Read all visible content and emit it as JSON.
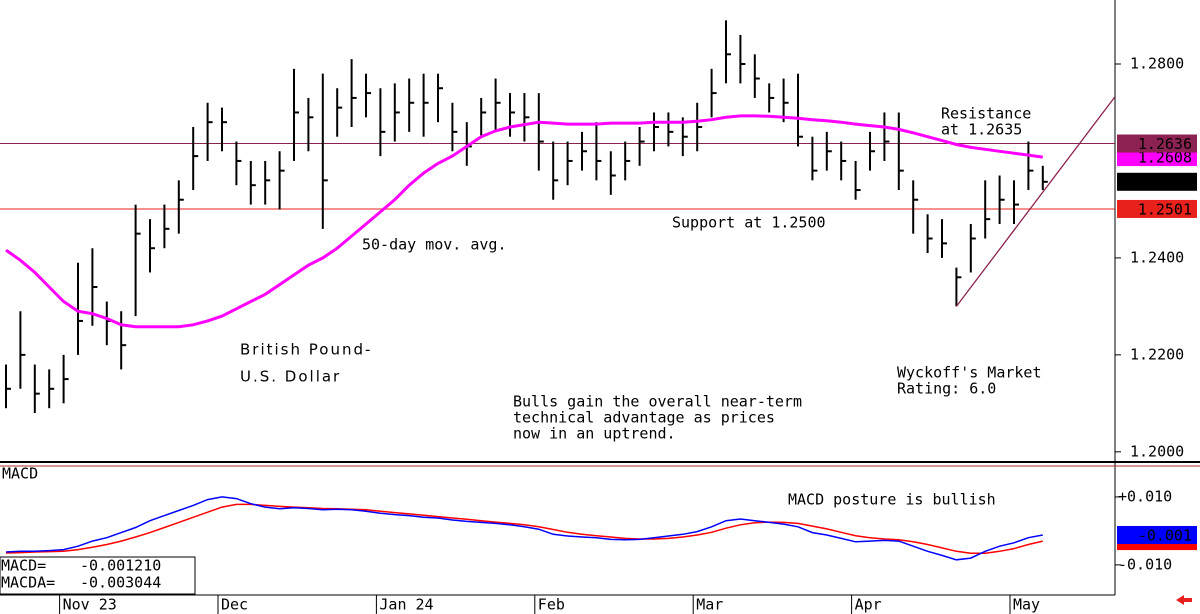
{
  "chart_data": [
    {
      "type": "ohlc",
      "title": [
        "British Pound-",
        "U.S. Dollar"
      ],
      "categories": [
        null,
        null,
        null,
        null,
        "Nov 23",
        null,
        null,
        null,
        null,
        null,
        null,
        null,
        null,
        null,
        null,
        "Dec",
        null,
        null,
        null,
        null,
        null,
        null,
        null,
        null,
        null,
        null,
        "Jan 24",
        null,
        null,
        null,
        null,
        null,
        null,
        null,
        null,
        null,
        null,
        "Feb",
        null,
        null,
        null,
        null,
        null,
        null,
        null,
        null,
        null,
        null,
        "Mar",
        null,
        null,
        null,
        null,
        null,
        null,
        null,
        null,
        null,
        null,
        "Apr",
        null,
        null,
        null,
        null,
        null,
        null,
        null,
        null,
        null,
        null,
        "May",
        null,
        null
      ],
      "bars": {
        "color": "#000000",
        "high": [
          1.218,
          1.229,
          1.218,
          1.217,
          1.22,
          1.239,
          1.242,
          1.231,
          1.229,
          1.251,
          1.248,
          1.251,
          1.256,
          1.267,
          1.272,
          1.271,
          1.264,
          1.26,
          1.26,
          1.262,
          1.279,
          1.273,
          1.278,
          1.275,
          1.281,
          1.278,
          1.275,
          1.276,
          1.277,
          1.278,
          1.278,
          1.272,
          1.268,
          1.273,
          1.277,
          1.274,
          1.274,
          1.274,
          1.264,
          1.264,
          1.266,
          1.268,
          1.262,
          1.264,
          1.267,
          1.27,
          1.27,
          1.269,
          1.272,
          1.279,
          1.289,
          1.286,
          1.282,
          1.276,
          1.277,
          1.278,
          1.265,
          1.266,
          1.264,
          1.26,
          1.266,
          1.27,
          1.27,
          1.256,
          1.249,
          1.248,
          1.238,
          1.247,
          1.256,
          1.257,
          1.256,
          1.264,
          1.259
        ],
        "low": [
          1.209,
          1.213,
          1.208,
          1.209,
          1.21,
          1.22,
          1.226,
          1.222,
          1.217,
          1.228,
          1.237,
          1.242,
          1.245,
          1.254,
          1.26,
          1.262,
          1.255,
          1.251,
          1.251,
          1.25,
          1.26,
          1.262,
          1.246,
          1.265,
          1.267,
          1.269,
          1.261,
          1.264,
          1.266,
          1.265,
          1.268,
          1.262,
          1.259,
          1.265,
          1.266,
          1.265,
          1.264,
          1.258,
          1.252,
          1.255,
          1.258,
          1.256,
          1.253,
          1.256,
          1.259,
          1.262,
          1.263,
          1.261,
          1.262,
          1.269,
          1.276,
          1.276,
          1.273,
          1.27,
          1.268,
          1.263,
          1.256,
          1.258,
          1.256,
          1.252,
          1.258,
          1.26,
          1.254,
          1.245,
          1.241,
          1.24,
          1.23,
          1.237,
          1.244,
          1.247,
          1.247,
          1.254,
          1.254
        ],
        "close": [
          1.213,
          1.22,
          1.212,
          1.213,
          1.215,
          1.227,
          1.234,
          1.227,
          1.222,
          1.245,
          1.242,
          1.246,
          1.252,
          1.261,
          1.268,
          1.268,
          1.26,
          1.255,
          1.256,
          1.258,
          1.27,
          1.269,
          1.256,
          1.271,
          1.273,
          1.274,
          1.266,
          1.27,
          1.272,
          1.272,
          1.275,
          1.266,
          1.263,
          1.27,
          1.272,
          1.27,
          1.269,
          1.264,
          1.256,
          1.26,
          1.262,
          1.26,
          1.257,
          1.26,
          1.264,
          1.267,
          1.266,
          1.265,
          1.267,
          1.274,
          1.282,
          1.28,
          1.277,
          1.273,
          1.272,
          1.265,
          1.258,
          1.262,
          1.26,
          1.254,
          1.262,
          1.264,
          1.258,
          1.252,
          1.244,
          1.243,
          1.236,
          1.244,
          1.248,
          1.252,
          1.251,
          1.258,
          1.2557
        ]
      },
      "series": [
        {
          "name": "50-day mov. avg.",
          "color": "#ff00ff",
          "values": [
            1.2416,
            1.2395,
            1.237,
            1.234,
            1.231,
            1.229,
            1.2285,
            1.2275,
            1.2262,
            1.2258,
            1.2258,
            1.2258,
            1.2258,
            1.2262,
            1.227,
            1.228,
            1.2295,
            1.231,
            1.2325,
            1.2345,
            1.2365,
            1.2385,
            1.24,
            1.242,
            1.2445,
            1.247,
            1.2495,
            1.252,
            1.255,
            1.2575,
            1.2595,
            1.261,
            1.263,
            1.265,
            1.2662,
            1.267,
            1.2675,
            1.268,
            1.2678,
            1.2676,
            1.2676,
            1.2676,
            1.2678,
            1.2678,
            1.2678,
            1.268,
            1.268,
            1.268,
            1.2682,
            1.2685,
            1.269,
            1.2693,
            1.2693,
            1.2692,
            1.269,
            1.2688,
            1.2685,
            1.2683,
            1.268,
            1.2676,
            1.2673,
            1.267,
            1.2665,
            1.2658,
            1.265,
            1.2642,
            1.2634,
            1.2628,
            1.2624,
            1.262,
            1.2616,
            1.2612,
            1.2608
          ]
        }
      ],
      "hlines": [
        {
          "value": 1.2636,
          "color": "#8b2252",
          "label": [
            "Resistance",
            "at 1.2635"
          ]
        },
        {
          "value": 1.2501,
          "color": "#e8211d",
          "label": [
            "Support at 1.2500"
          ]
        }
      ],
      "trendline": {
        "color": "#8b2252",
        "x": [
          66,
          77
        ],
        "y": [
          1.23,
          1.2732
        ]
      },
      "commentary": [
        "Bulls gain the overall near-term",
        "technical advantage as prices",
        "now in an uptrend."
      ],
      "rating": [
        "Wyckoff's Market",
        "Rating: 6.0"
      ],
      "ylim": [
        1.1979,
        1.2932
      ],
      "yticks": [
        {
          "value": 1.28,
          "label": "1.2800"
        },
        {
          "value": 1.24,
          "label": "1.2400"
        },
        {
          "value": 1.22,
          "label": "1.2200"
        },
        {
          "value": 1.2,
          "label": "1.2000"
        }
      ]
    },
    {
      "type": "line",
      "title": "MACD",
      "annotation": "MACD posture is bullish",
      "series": [
        {
          "name": "MACD=",
          "readout": "-0.001210",
          "color": "#0000ff",
          "values": [
            -0.0062,
            -0.006,
            -0.006,
            -0.0058,
            -0.0055,
            -0.0045,
            -0.003,
            -0.002,
            -0.0005,
            0.001,
            0.003,
            0.0045,
            0.006,
            0.0075,
            0.0092,
            0.01,
            0.0095,
            0.008,
            0.007,
            0.0065,
            0.0068,
            0.0066,
            0.0062,
            0.0064,
            0.0062,
            0.0058,
            0.0052,
            0.0048,
            0.0045,
            0.004,
            0.0038,
            0.0032,
            0.0028,
            0.0025,
            0.0022,
            0.0018,
            0.0012,
            0.0005,
            -0.001,
            -0.0015,
            -0.0018,
            -0.002,
            -0.0025,
            -0.0026,
            -0.0025,
            -0.002,
            -0.0015,
            -0.001,
            -0.0002,
            0.0012,
            0.003,
            0.0035,
            0.003,
            0.0025,
            0.002,
            0.0012,
            -0.0005,
            -0.0012,
            -0.0022,
            -0.0032,
            -0.003,
            -0.0028,
            -0.003,
            -0.0045,
            -0.006,
            -0.0072,
            -0.0085,
            -0.008,
            -0.006,
            -0.0045,
            -0.0035,
            -0.002,
            -0.0012
          ],
          "value_labels": [
            null,
            null,
            null,
            null,
            null,
            null,
            null,
            null,
            null,
            null,
            null,
            null,
            null,
            null,
            null,
            null,
            null,
            null,
            null,
            null,
            null,
            null,
            null,
            null,
            null,
            null,
            null,
            null,
            null,
            null,
            null,
            null,
            null,
            null,
            null,
            null,
            null,
            null,
            null,
            null,
            null,
            null,
            null,
            null,
            null,
            null,
            null,
            null,
            null,
            null,
            null,
            null,
            null,
            null,
            null,
            null,
            null,
            null,
            null,
            null,
            null,
            null,
            null,
            null,
            null,
            null,
            null,
            null,
            null,
            null,
            null,
            null,
            "-0.001"
          ]
        },
        {
          "name": "MACDA=",
          "readout": "-0.003044",
          "color": "#ff0000",
          "values": [
            -0.0065,
            -0.0064,
            -0.0062,
            -0.0061,
            -0.006,
            -0.0055,
            -0.0048,
            -0.004,
            -0.003,
            -0.0018,
            -0.0005,
            0.001,
            0.0025,
            0.004,
            0.0055,
            0.007,
            0.0078,
            0.0078,
            0.0075,
            0.0072,
            0.007,
            0.0068,
            0.0066,
            0.0065,
            0.0064,
            0.0062,
            0.0058,
            0.0054,
            0.005,
            0.0046,
            0.0042,
            0.0038,
            0.0034,
            0.003,
            0.0026,
            0.0022,
            0.0018,
            0.0012,
            0.0004,
            -0.0004,
            -0.001,
            -0.0014,
            -0.0018,
            -0.0022,
            -0.0024,
            -0.0024,
            -0.0022,
            -0.0018,
            -0.0012,
            -0.0004,
            0.0008,
            0.0018,
            0.0024,
            0.0026,
            0.0025,
            0.0022,
            0.0014,
            0.0006,
            -0.0004,
            -0.0014,
            -0.002,
            -0.0024,
            -0.0026,
            -0.0032,
            -0.004,
            -0.005,
            -0.006,
            -0.0066,
            -0.0066,
            -0.006,
            -0.0052,
            -0.004,
            -0.003
          ]
        }
      ],
      "ylim": [
        -0.0174,
        0.0194
      ],
      "yticks": [
        {
          "value": 0.01,
          "label": "+0.010"
        },
        {
          "value": -0.01,
          "label": "-0.010"
        }
      ]
    }
  ]
}
